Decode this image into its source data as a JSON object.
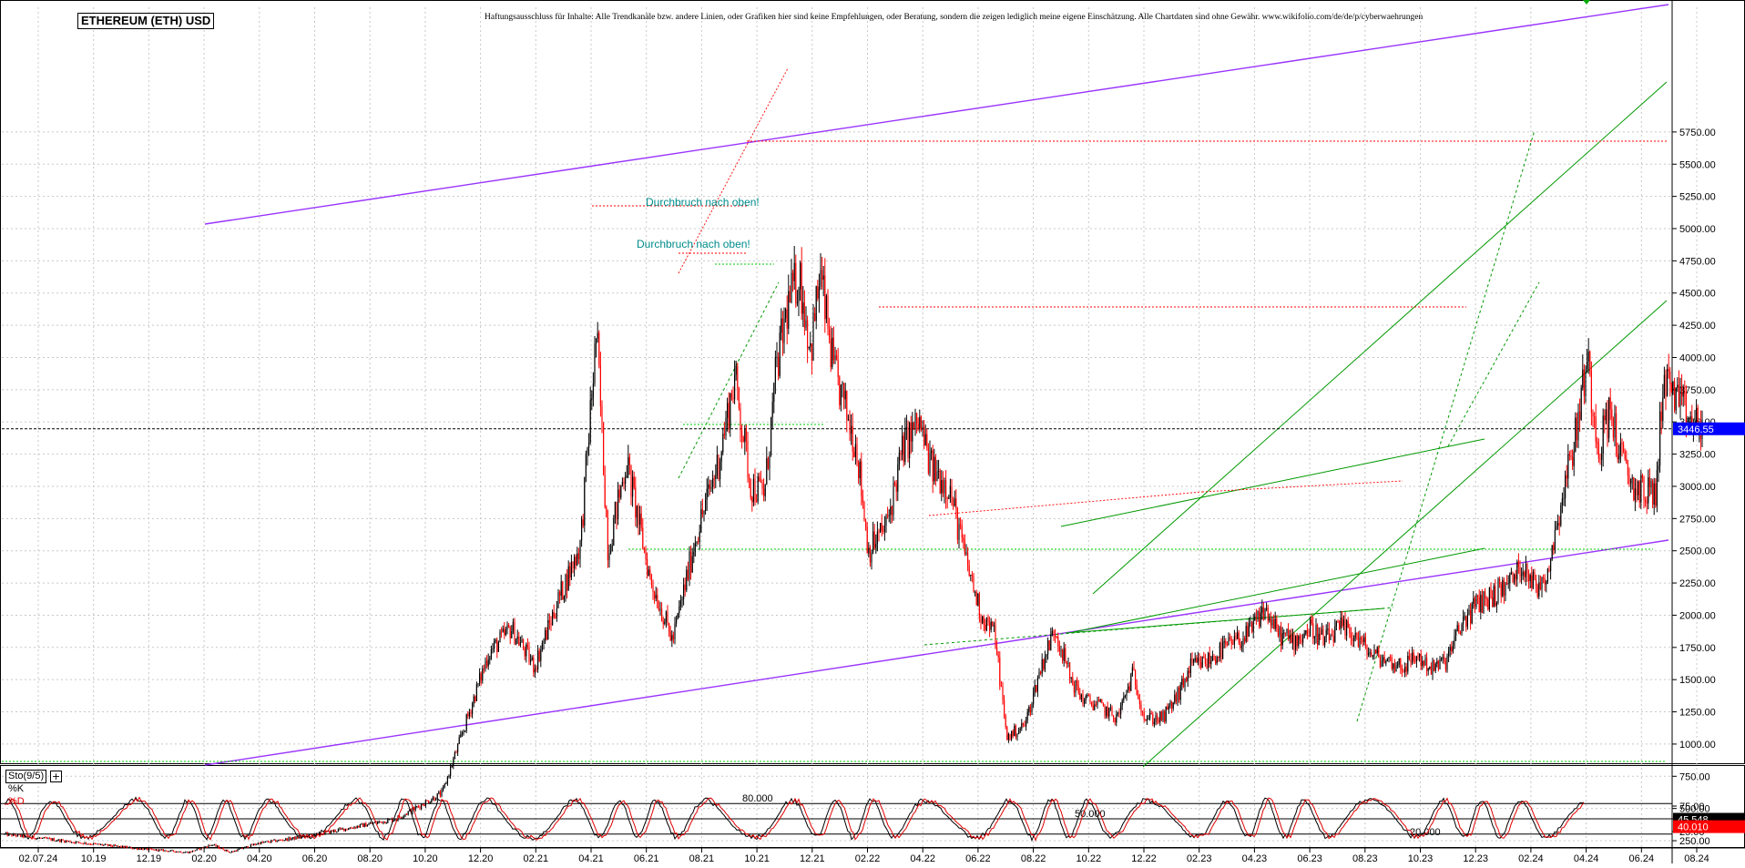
{
  "title": "ETHEREUM (ETH) USD",
  "disclaimer": "Haftungsausschluss für Inhalte: Alle Trendkanäle bzw. andere Linien, oder Grafiken hier sind keine Empfehlungen, oder Beratung, sondern die zeigen lediglich meine eigene Einschätzung. Alle Chartdaten sind ohne Gewähr. www.wikifolio.com/de/de/p/cyberwaehrungen",
  "colors": {
    "up_candle": "#000000",
    "down_candle": "#ff0000",
    "channel": "#9933ff",
    "trend": "#009900",
    "trend_dotted": "#00cc00",
    "resistance": "#ff0000",
    "price_tag": "#0000ff",
    "k_tag": "#000000",
    "d_tag": "#ff0000"
  },
  "chart_data": [
    {
      "type": "line",
      "name": "price",
      "x_ticks": [
        "02.07.24",
        "10.19",
        "12.19",
        "02.20",
        "04.20",
        "06.20",
        "08.20",
        "10.20",
        "12.20",
        "02.21",
        "04.21",
        "06.21",
        "08.21",
        "10.21",
        "12.21",
        "02.22",
        "04.22",
        "06.22",
        "08.22",
        "10.22",
        "12.22",
        "02.23",
        "04.23",
        "06.23",
        "08.23",
        "10.23",
        "12.23",
        "02.24",
        "04.24",
        "06.24",
        "08.24"
      ],
      "y_ticks": [
        "250.00",
        "500.00",
        "750.00",
        "1000.00",
        "1250.00",
        "1500.00",
        "1750.00",
        "2000.00",
        "2250.00",
        "2500.00",
        "2750.00",
        "3000.00",
        "3250.00",
        "3500.00",
        "3750.00",
        "4000.00",
        "4250.00",
        "4500.00",
        "4750.00",
        "5000.00",
        "5250.00",
        "5500.00",
        "5750.00"
      ],
      "ylim": [
        0,
        5950
      ],
      "last_price": "3446.55",
      "annotations": [
        "Durchbruch nach oben!",
        "Durchbruch nach oben!"
      ],
      "keypoints": [
        [
          0,
          300
        ],
        [
          3,
          240
        ],
        [
          6,
          185
        ],
        [
          8,
          160
        ],
        [
          9,
          220
        ],
        [
          9.8,
          160
        ],
        [
          11,
          230
        ],
        [
          13,
          280
        ],
        [
          15,
          350
        ],
        [
          17,
          420
        ],
        [
          19,
          620
        ],
        [
          20,
          1150
        ],
        [
          21,
          1700
        ],
        [
          22,
          1900
        ],
        [
          23,
          1600
        ],
        [
          24,
          2100
        ],
        [
          25,
          2550
        ],
        [
          25.7,
          4200
        ],
        [
          26.2,
          2500
        ],
        [
          27,
          3200
        ],
        [
          28,
          2300
        ],
        [
          29,
          1800
        ],
        [
          30,
          2600
        ],
        [
          31,
          3200
        ],
        [
          31.7,
          3850
        ],
        [
          32.4,
          3000
        ],
        [
          33,
          2950
        ],
        [
          33.5,
          3900
        ],
        [
          34,
          4400
        ],
        [
          34.5,
          4650
        ],
        [
          35,
          4050
        ],
        [
          35.4,
          4650
        ],
        [
          36,
          3900
        ],
        [
          37,
          3300
        ],
        [
          37.5,
          2500
        ],
        [
          38.3,
          2700
        ],
        [
          39,
          3300
        ],
        [
          39.7,
          3500
        ],
        [
          40.2,
          3150
        ],
        [
          41,
          3000
        ],
        [
          41.7,
          2450
        ],
        [
          42.4,
          2000
        ],
        [
          43,
          1850
        ],
        [
          43.5,
          1050
        ],
        [
          44.3,
          1150
        ],
        [
          45,
          1600
        ],
        [
          45.6,
          1900
        ],
        [
          46.3,
          1500
        ],
        [
          46.8,
          1350
        ],
        [
          47.5,
          1300
        ],
        [
          48.3,
          1200
        ],
        [
          49,
          1550
        ],
        [
          49.5,
          1200
        ],
        [
          50.3,
          1200
        ],
        [
          51,
          1400
        ],
        [
          51.5,
          1600
        ],
        [
          52.3,
          1650
        ],
        [
          53,
          1750
        ],
        [
          54,
          1850
        ],
        [
          54.7,
          2050
        ],
        [
          55.3,
          1850
        ],
        [
          56,
          1800
        ],
        [
          56.7,
          1900
        ],
        [
          57.3,
          1800
        ],
        [
          58,
          1900
        ],
        [
          58.6,
          1850
        ],
        [
          59.3,
          1700
        ],
        [
          60,
          1650
        ],
        [
          60.7,
          1600
        ],
        [
          61.3,
          1680
        ],
        [
          62,
          1580
        ],
        [
          62.6,
          1650
        ],
        [
          63.3,
          1950
        ],
        [
          64,
          2100
        ],
        [
          64.6,
          2150
        ],
        [
          65.3,
          2250
        ],
        [
          66,
          2400
        ],
        [
          66.5,
          2200
        ],
        [
          67,
          2350
        ],
        [
          67.7,
          3000
        ],
        [
          68.2,
          3400
        ],
        [
          68.7,
          4000
        ],
        [
          69.2,
          3300
        ],
        [
          69.7,
          3600
        ],
        [
          70.2,
          3200
        ],
        [
          70.7,
          3000
        ],
        [
          71.2,
          2950
        ],
        [
          71.7,
          2950
        ],
        [
          72,
          3850
        ],
        [
          72.4,
          3750
        ],
        [
          72.8,
          3600
        ],
        [
          73.2,
          3500
        ],
        [
          73.7,
          3446
        ]
      ]
    },
    {
      "type": "line",
      "name": "Sto(9/5)",
      "series": [
        {
          "name": "%K",
          "tag": "45.548"
        },
        {
          "name": "%D",
          "tag": "40.010"
        }
      ],
      "y_ticks": [
        "25.00",
        "50.00",
        "75.00"
      ],
      "ylim": [
        0,
        100
      ],
      "levels": [
        "80.000",
        "50.000",
        "20.000"
      ]
    }
  ]
}
